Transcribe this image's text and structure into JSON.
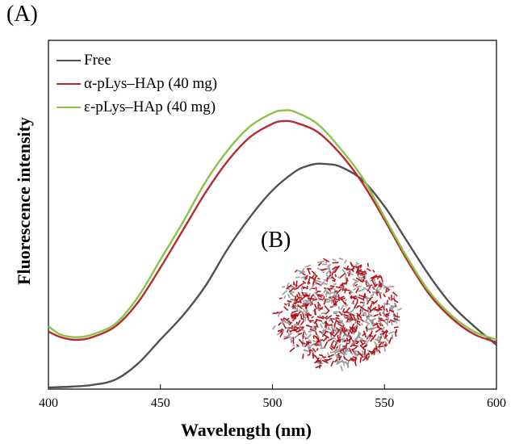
{
  "panels": {
    "a_label": "(A)",
    "b_label": "(B)"
  },
  "chart_data": {
    "type": "line",
    "title": "",
    "xlabel": "Wavelength (nm)",
    "ylabel": "Fluorescence intensity",
    "xlim": [
      400,
      600
    ],
    "ylim": [
      0,
      1
    ],
    "y_ticks_shown": false,
    "x_ticks": [
      "400",
      "450",
      "500",
      "550",
      "600"
    ],
    "legend_position": "top-left",
    "series": [
      {
        "name": "Free",
        "color": "#505050",
        "x": [
          400,
          410,
          420,
          430,
          440,
          450,
          460,
          470,
          480,
          490,
          500,
          510,
          515,
          520,
          525,
          530,
          540,
          550,
          560,
          570,
          580,
          590,
          600
        ],
        "y": [
          0.0,
          0.003,
          0.01,
          0.03,
          0.09,
          0.18,
          0.27,
          0.38,
          0.52,
          0.64,
          0.74,
          0.81,
          0.83,
          0.84,
          0.838,
          0.83,
          0.78,
          0.68,
          0.55,
          0.42,
          0.31,
          0.23,
          0.16
        ]
      },
      {
        "name": "α-pLys–HAp  (40 mg)",
        "color": "#b52a34",
        "x": [
          400,
          405,
          410,
          415,
          420,
          430,
          440,
          450,
          460,
          470,
          480,
          490,
          500,
          505,
          510,
          520,
          530,
          540,
          550,
          560,
          570,
          580,
          590,
          600
        ],
        "y": [
          0.21,
          0.19,
          0.18,
          0.18,
          0.19,
          0.23,
          0.32,
          0.45,
          0.59,
          0.73,
          0.85,
          0.94,
          0.99,
          1.0,
          0.995,
          0.96,
          0.88,
          0.77,
          0.63,
          0.48,
          0.35,
          0.26,
          0.2,
          0.17
        ]
      },
      {
        "name": "ε-pLys–HAp  (40 mg)",
        "color": "#8bc34a",
        "x": [
          400,
          405,
          410,
          415,
          420,
          430,
          440,
          450,
          460,
          470,
          480,
          490,
          500,
          505,
          510,
          520,
          530,
          540,
          550,
          560,
          570,
          580,
          590,
          600
        ],
        "y": [
          0.23,
          0.2,
          0.19,
          0.19,
          0.2,
          0.24,
          0.34,
          0.48,
          0.62,
          0.77,
          0.89,
          0.98,
          1.03,
          1.04,
          1.035,
          0.99,
          0.9,
          0.79,
          0.64,
          0.49,
          0.36,
          0.27,
          0.21,
          0.18
        ]
      }
    ]
  }
}
